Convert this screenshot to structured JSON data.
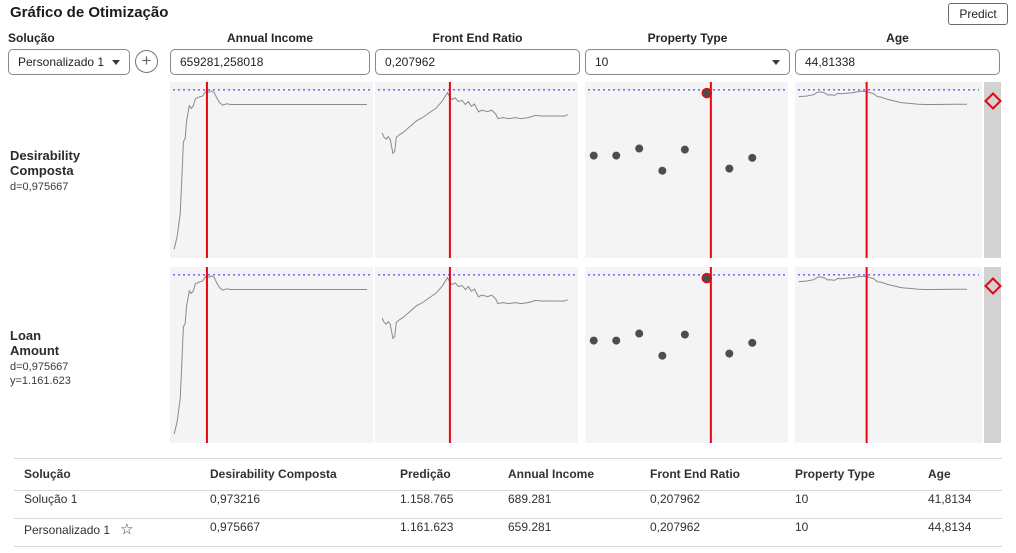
{
  "header": {
    "title": "Gráfico de Otimização",
    "predict_label": "Predict"
  },
  "controls": {
    "solution_label": "Solução",
    "solution_selected": "Personalizado 1",
    "factors": [
      {
        "label": "Annual Income",
        "value": "659281,258018",
        "control": "input"
      },
      {
        "label": "Front End Ratio",
        "value": "0,207962",
        "control": "input"
      },
      {
        "label": "Property Type",
        "value": "10",
        "control": "select"
      },
      {
        "label": "Age",
        "value": "44,81338",
        "control": "input"
      }
    ]
  },
  "profiler": {
    "row_labels": [
      {
        "title_lines": [
          "Desirability",
          "Composta"
        ],
        "stats": [
          "d=0,975667"
        ]
      },
      {
        "title_lines": [
          "Loan",
          "Amount"
        ],
        "stats": [
          "d=0,975667",
          "y=1.161.623"
        ]
      }
    ]
  },
  "chart_data": {
    "type": "profiler",
    "factor_axes": [
      "Annual Income",
      "Front End Ratio",
      "Property Type",
      "Age"
    ],
    "response_rows": [
      "Desirability Composta",
      "Loan Amount"
    ],
    "rows_identical": true,
    "target_line_y_pct": 4.5,
    "red_line_x_pct": [
      18.2,
      36.9,
      62.0,
      38.3
    ],
    "cells": [
      {
        "kind": "line",
        "points": [
          [
            2,
            95
          ],
          [
            3.5,
            88
          ],
          [
            5,
            75
          ],
          [
            5.8,
            55
          ],
          [
            6.6,
            34
          ],
          [
            7.5,
            32
          ],
          [
            8.2,
            22
          ],
          [
            9.5,
            13.5
          ],
          [
            10.5,
            15
          ],
          [
            11.5,
            13.5
          ],
          [
            12.5,
            9.5
          ],
          [
            14.5,
            8.5
          ],
          [
            16,
            8
          ],
          [
            17.5,
            5.5
          ],
          [
            19,
            5.8
          ],
          [
            20.5,
            5
          ],
          [
            21.8,
            6
          ],
          [
            23,
            9
          ],
          [
            24.5,
            11.8
          ],
          [
            26,
            13.2
          ],
          [
            28,
            12.4
          ],
          [
            30,
            12.8
          ],
          [
            97,
            12.8
          ]
        ]
      },
      {
        "kind": "line",
        "points": [
          [
            3.5,
            29
          ],
          [
            4.5,
            31.5
          ],
          [
            5.5,
            32.5
          ],
          [
            6.5,
            31
          ],
          [
            7.5,
            32.5
          ],
          [
            8.8,
            40.5
          ],
          [
            9.7,
            39.5
          ],
          [
            10.5,
            31.5
          ],
          [
            12,
            30
          ],
          [
            14,
            28.5
          ],
          [
            16,
            26.5
          ],
          [
            18,
            24.5
          ],
          [
            20.5,
            22
          ],
          [
            23,
            20.5
          ],
          [
            25.5,
            18.5
          ],
          [
            28,
            16.5
          ],
          [
            30,
            15
          ],
          [
            31.5,
            13
          ],
          [
            33,
            11
          ],
          [
            35.7,
            6
          ],
          [
            36.8,
            8.5
          ],
          [
            38,
            10
          ],
          [
            39.5,
            9
          ],
          [
            41,
            11
          ],
          [
            43,
            10.5
          ],
          [
            44.5,
            12.8
          ],
          [
            46,
            11.2
          ],
          [
            47.5,
            13.8
          ],
          [
            49,
            12.5
          ],
          [
            51,
            17
          ],
          [
            52.5,
            16
          ],
          [
            55.5,
            16.8
          ],
          [
            57.5,
            16
          ],
          [
            59.5,
            18.2
          ],
          [
            60.5,
            20.8
          ],
          [
            63,
            20.2
          ],
          [
            66,
            20.8
          ],
          [
            69,
            20.2
          ],
          [
            72,
            20.8
          ],
          [
            75,
            20.3
          ],
          [
            77.5,
            19.6
          ],
          [
            79,
            19
          ],
          [
            82,
            19.3
          ],
          [
            88,
            19.3
          ],
          [
            93,
            19.4
          ],
          [
            95,
            18.6
          ]
        ]
      },
      {
        "kind": "scatter",
        "points": [
          [
            4.3,
            41.8
          ],
          [
            15.4,
            41.8
          ],
          [
            26.7,
            37.8
          ],
          [
            38.1,
            50.4
          ],
          [
            49.2,
            38.4
          ],
          [
            60,
            6.3
          ],
          [
            71.1,
            49.2
          ],
          [
            82.4,
            43.1
          ]
        ],
        "highlight_index": 5
      },
      {
        "kind": "line",
        "points": [
          [
            2,
            8.3
          ],
          [
            6,
            8
          ],
          [
            10,
            7.2
          ],
          [
            12,
            5.8
          ],
          [
            14,
            5.6
          ],
          [
            16,
            6.3
          ],
          [
            17.5,
            7.4
          ],
          [
            19,
            7.2
          ],
          [
            21,
            7.6
          ],
          [
            23,
            6.5
          ],
          [
            25,
            6.7
          ],
          [
            28,
            6.3
          ],
          [
            31,
            6
          ],
          [
            33,
            5.6
          ],
          [
            35,
            5.2
          ],
          [
            38.3,
            5.4
          ],
          [
            40,
            6
          ],
          [
            42,
            6.6
          ],
          [
            44,
            8.3
          ],
          [
            46,
            8.6
          ],
          [
            48,
            9.4
          ],
          [
            50,
            10
          ],
          [
            52,
            10.5
          ],
          [
            54,
            11
          ],
          [
            56,
            11.6
          ],
          [
            58,
            11.9
          ],
          [
            62,
            12.2
          ],
          [
            66,
            12.6
          ],
          [
            70,
            12.8
          ],
          [
            75,
            12.8
          ],
          [
            80,
            12.7
          ],
          [
            85,
            12.6
          ],
          [
            92,
            12.6
          ]
        ]
      }
    ]
  },
  "table": {
    "columns": [
      "Solução",
      "Desirability Composta",
      "Predição",
      "Annual Income",
      "Front End Ratio",
      "Property Type",
      "Age"
    ],
    "rows": [
      {
        "cells": [
          "Solução 1",
          "0,973216",
          "1.158.765",
          "689.281",
          "0,207962",
          "10",
          "41,8134"
        ],
        "starred": false
      },
      {
        "cells": [
          "Personalizado 1",
          "0,975667",
          "1.161.623",
          "659.281",
          "0,207962",
          "10",
          "44,8134"
        ],
        "starred": true
      }
    ],
    "star_icon": "☆"
  },
  "colors": {
    "red_line": "#e30613",
    "target_blue": "#2222ee",
    "curve": "#8a8a8a",
    "dot": "#4d4d4d",
    "chart_bg": "#f4f4f4",
    "strip_bg": "#d2d2d2"
  }
}
